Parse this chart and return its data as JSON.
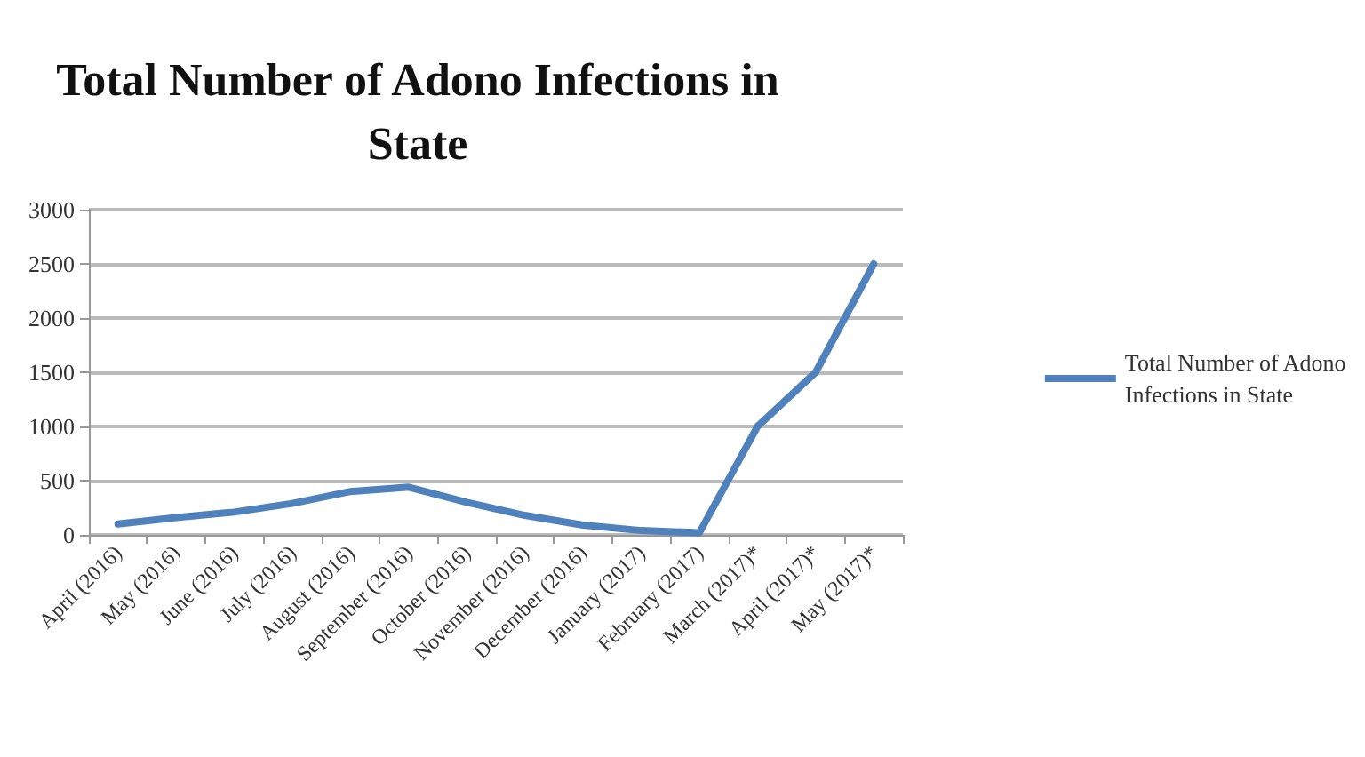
{
  "chart_data": {
    "type": "line",
    "title": "Total Number of Adono Infections in\nState",
    "categories": [
      "April (2016)",
      "May (2016)",
      "June (2016)",
      "July (2016)",
      "August (2016)",
      "September (2016)",
      "October (2016)",
      "November (2016)",
      "December (2016)",
      "January (2017)",
      "February (2017)",
      "March (2017)*",
      "April (2017)*",
      "May (2017)*"
    ],
    "series": [
      {
        "name": "Total Number of Adono Infections in State",
        "color": "#4f81bd",
        "values": [
          100,
          160,
          210,
          290,
          400,
          440,
          300,
          180,
          90,
          40,
          20,
          1000,
          1500,
          2500
        ]
      }
    ],
    "ylim": [
      0,
      3000
    ],
    "yticks": [
      0,
      500,
      1000,
      1500,
      2000,
      2500,
      3000
    ],
    "grid": "y",
    "legend": "right",
    "marker": "none",
    "line_style": "solid"
  }
}
